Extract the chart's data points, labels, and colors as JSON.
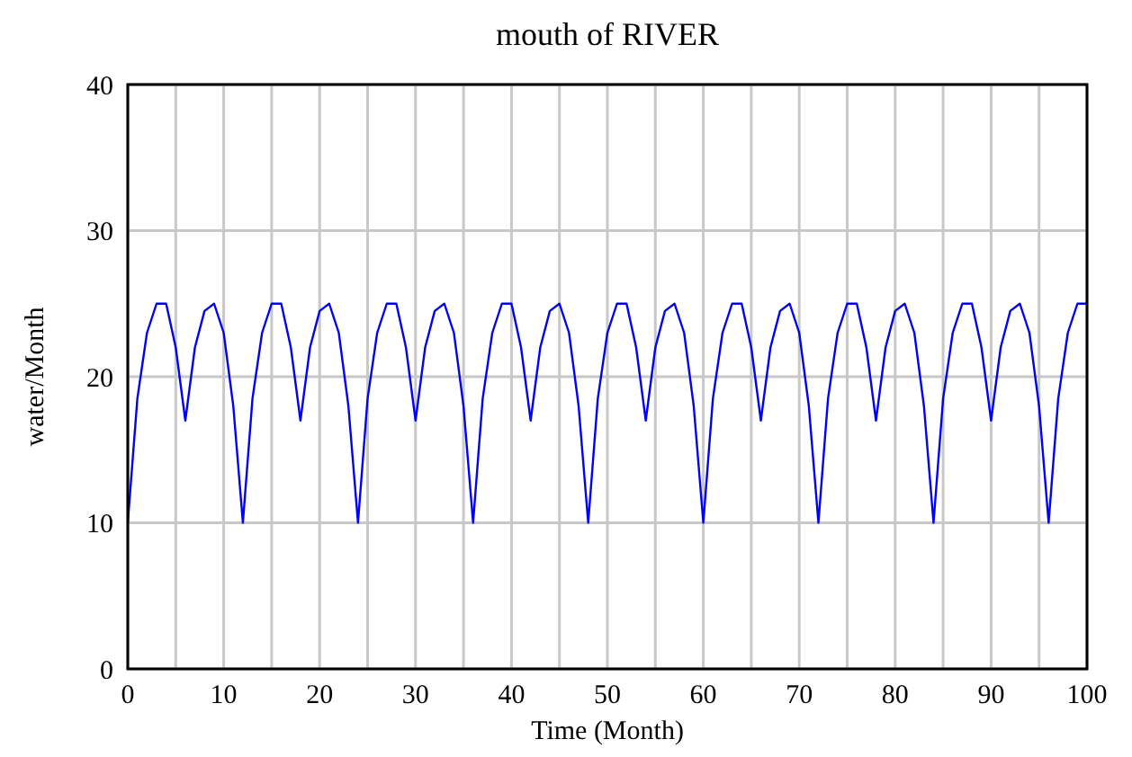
{
  "chart_data": {
    "type": "line",
    "title": "mouth of RIVER",
    "xlabel": "Time (Month)",
    "ylabel": "water/Month",
    "x": [
      0,
      1,
      2,
      3,
      4,
      5,
      6,
      7,
      8,
      9,
      10,
      11,
      12,
      13,
      14,
      15,
      16,
      17,
      18,
      19,
      20,
      21,
      22,
      23,
      24,
      25,
      26,
      27,
      28,
      29,
      30,
      31,
      32,
      33,
      34,
      35,
      36,
      37,
      38,
      39,
      40,
      41,
      42,
      43,
      44,
      45,
      46,
      47,
      48,
      49,
      50,
      51,
      52,
      53,
      54,
      55,
      56,
      57,
      58,
      59,
      60,
      61,
      62,
      63,
      64,
      65,
      66,
      67,
      68,
      69,
      70,
      71,
      72,
      73,
      74,
      75,
      76,
      77,
      78,
      79,
      80,
      81,
      82,
      83,
      84,
      85,
      86,
      87,
      88,
      89,
      90,
      91,
      92,
      93,
      94,
      95,
      96,
      97,
      98,
      99,
      100
    ],
    "series": [
      {
        "color": "#0000ff",
        "values": [
          10,
          18.5,
          23,
          25,
          25,
          22,
          17,
          22,
          24.5,
          25,
          23,
          18,
          10,
          18.5,
          23,
          25,
          25,
          22,
          17,
          22,
          24.5,
          25,
          23,
          18,
          10,
          18.5,
          23,
          25,
          25,
          22,
          17,
          22,
          24.5,
          25,
          23,
          18,
          10,
          18.5,
          23,
          25,
          25,
          22,
          17,
          22,
          24.5,
          25,
          23,
          18,
          10,
          18.5,
          23,
          25,
          25,
          22,
          17,
          22,
          24.5,
          25,
          23,
          18,
          10,
          18.5,
          23,
          25,
          25,
          22,
          17,
          22,
          24.5,
          25,
          23,
          18,
          10,
          18.5,
          23,
          25,
          25,
          22,
          17,
          22,
          24.5,
          25,
          23,
          18,
          10,
          18.5,
          23,
          25,
          25,
          22,
          17,
          22,
          24.5,
          25,
          23,
          18,
          10,
          18.5,
          23,
          25,
          25
        ]
      }
    ],
    "xlim": [
      0,
      100
    ],
    "xticks": [
      0,
      10,
      20,
      30,
      40,
      50,
      60,
      70,
      80,
      90,
      100
    ],
    "ylim": [
      0,
      40
    ],
    "yticks": [
      0,
      10,
      20,
      30,
      40
    ],
    "grid": true,
    "marker": "none",
    "line_style": "solid"
  }
}
